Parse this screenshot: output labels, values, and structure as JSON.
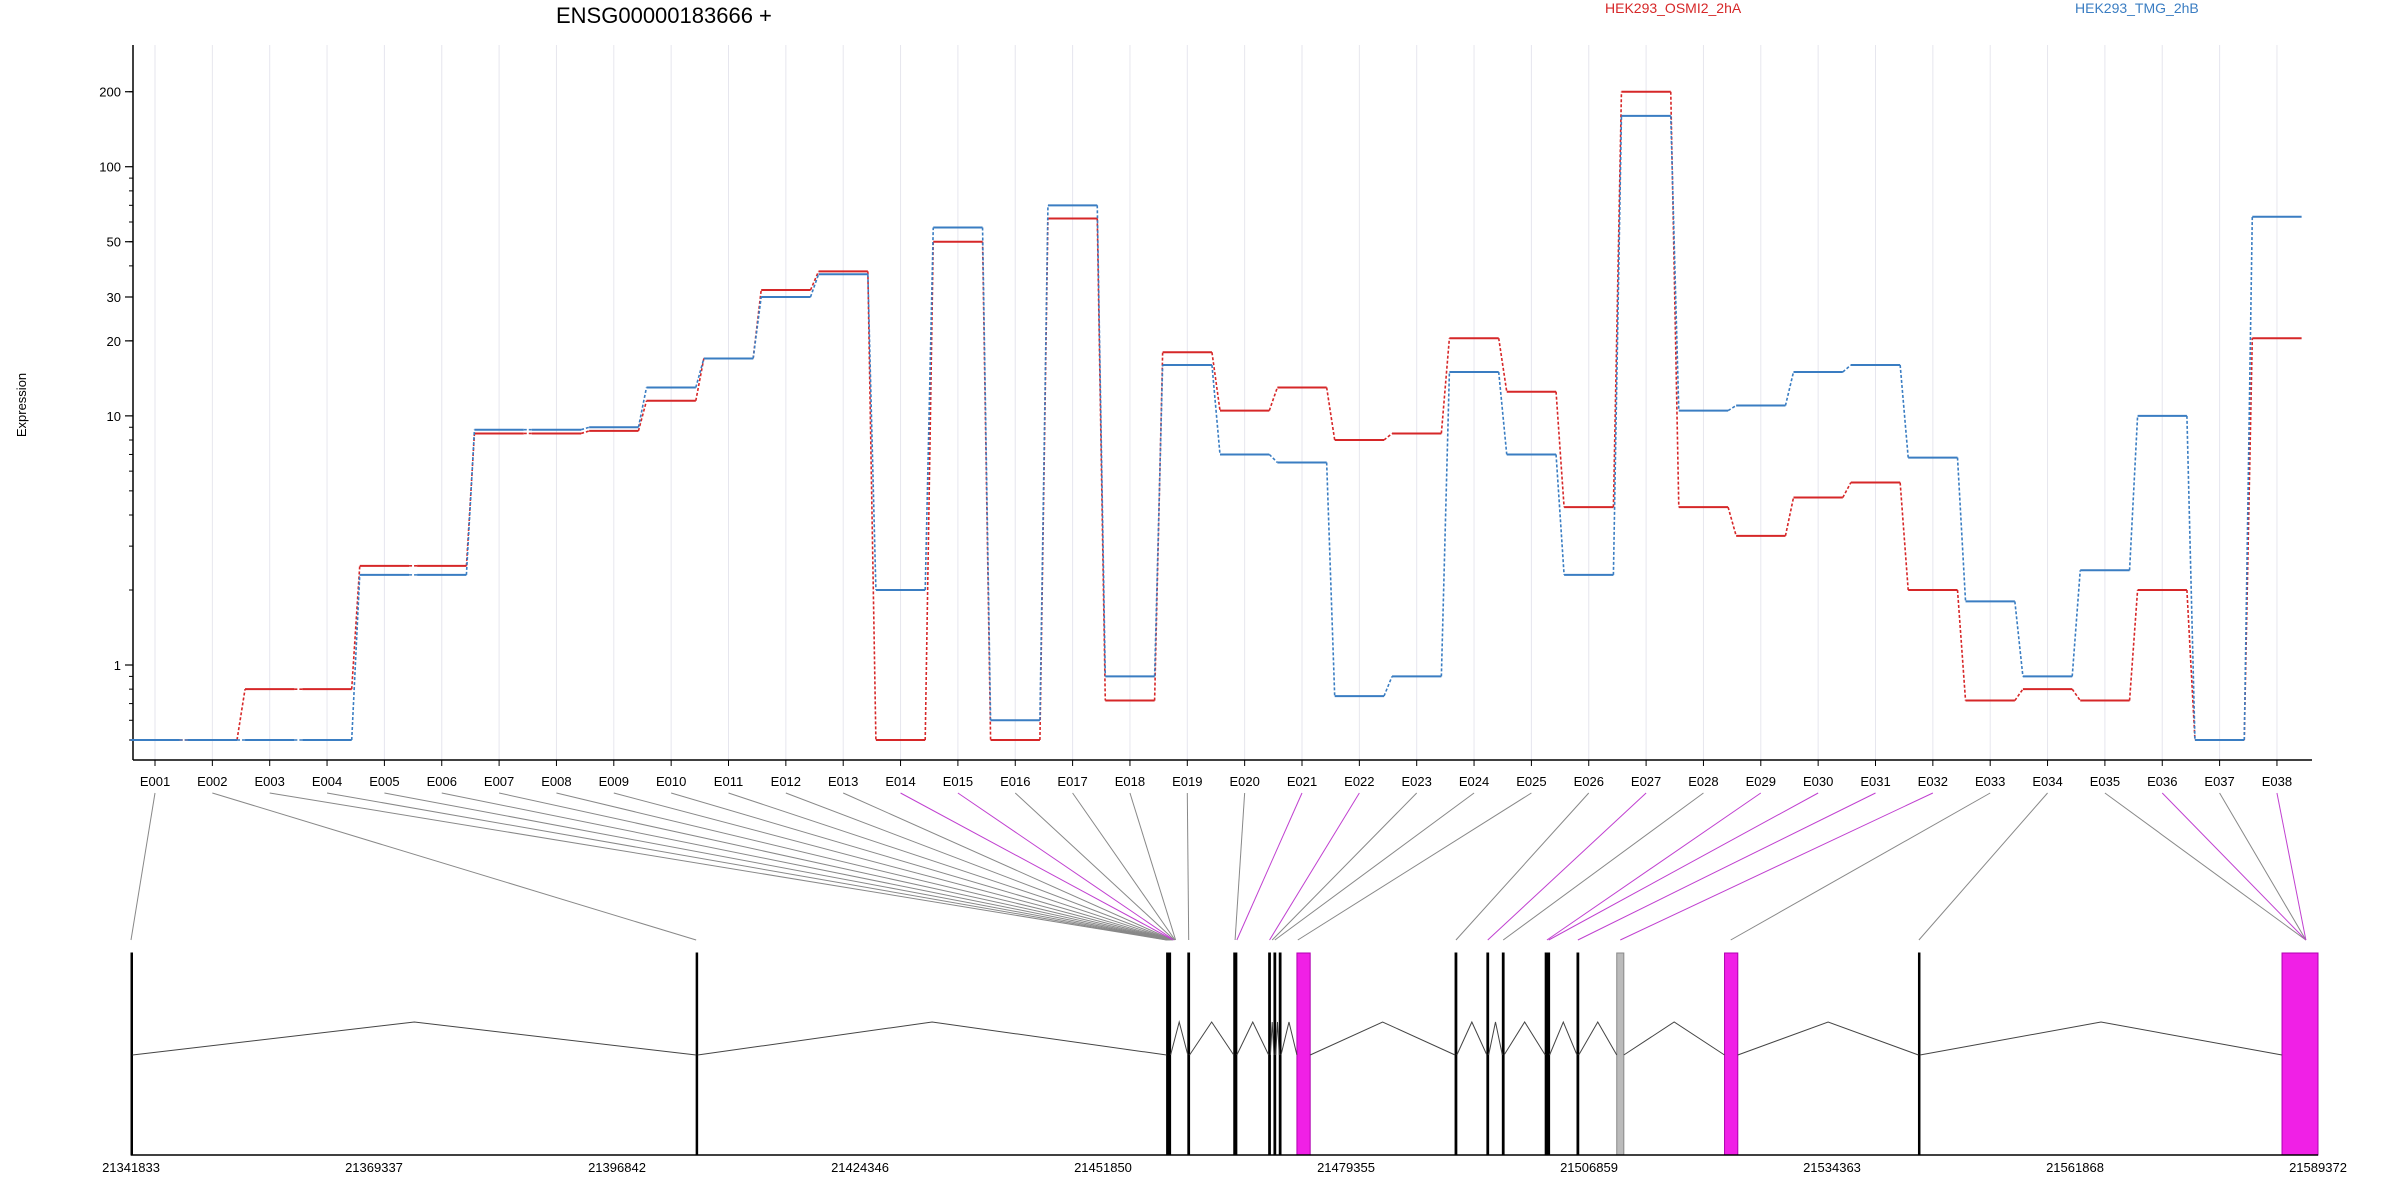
{
  "chart_data": {
    "type": "line",
    "title": "ENSG00000183666 +",
    "xlabel": "",
    "ylabel": "Expression",
    "y_scale": "log",
    "ylim": [
      0.5,
      240
    ],
    "yticks": [
      1,
      10,
      20,
      30,
      50,
      100,
      200
    ],
    "grid": "vertical",
    "legend_placement": "top-right",
    "colors": {
      "HEK293_OSMI2_2hA": "#d62728",
      "HEK293_TMG_2hB": "#3a7dc2",
      "intron": "#444444",
      "exon": "#000000",
      "exon_highlight": "#f020e6",
      "exon_gray": "#bbbbbb",
      "connector": "#888888",
      "connector_highlight": "#c040d0"
    },
    "categories": [
      "E001",
      "E002",
      "E003",
      "E004",
      "E005",
      "E006",
      "E007",
      "E008",
      "E009",
      "E010",
      "E011",
      "E012",
      "E013",
      "E014",
      "E015",
      "E016",
      "E017",
      "E018",
      "E019",
      "E020",
      "E021",
      "E022",
      "E023",
      "E024",
      "E025",
      "E026",
      "E027",
      "E028",
      "E029",
      "E030",
      "E031",
      "E032",
      "E033",
      "E034",
      "E035",
      "E036",
      "E037",
      "E038"
    ],
    "series": [
      {
        "name": "HEK293_OSMI2_2hA",
        "values": [
          0.5,
          0.5,
          0.8,
          0.8,
          2.5,
          2.5,
          8.5,
          8.5,
          8.7,
          11.5,
          17,
          32,
          38,
          0.5,
          50,
          0.5,
          62,
          0.72,
          18,
          10.5,
          13,
          8,
          8.5,
          20.5,
          12.5,
          4.3,
          200,
          4.3,
          3.3,
          4.7,
          5.4,
          2.0,
          0.72,
          0.8,
          0.72,
          2.0,
          0.5,
          20.5
        ]
      },
      {
        "name": "HEK293_TMG_2hB",
        "values": [
          0.5,
          0.5,
          0.5,
          0.5,
          2.3,
          2.3,
          8.8,
          8.8,
          9.0,
          13,
          17,
          30,
          37,
          2,
          57,
          0.6,
          70,
          0.9,
          16,
          7,
          6.5,
          0.75,
          0.9,
          15,
          7.0,
          2.3,
          160,
          10.5,
          11,
          15,
          16,
          6.8,
          1.8,
          0.9,
          2.4,
          10,
          0.5,
          63
        ]
      }
    ],
    "connector_highlight_exons": [
      "E014",
      "E015",
      "E021",
      "E022",
      "E027",
      "E029",
      "E030",
      "E031",
      "E032",
      "E036",
      "E038"
    ],
    "gene_model": {
      "coordinates": [
        "21341833",
        "21369337",
        "21396842",
        "21424346",
        "21451850",
        "21479355",
        "21506859",
        "21534363",
        "21561868",
        "21589372"
      ],
      "exons": [
        {
          "start": 21341833,
          "end": 21341833,
          "type": "line"
        },
        {
          "start": 21405800,
          "end": 21405800,
          "type": "line"
        },
        {
          "start": 21459050,
          "end": 21459400,
          "type": "solid"
        },
        {
          "start": 21461450,
          "end": 21461650,
          "type": "line"
        },
        {
          "start": 21466650,
          "end": 21467000,
          "type": "line"
        },
        {
          "start": 21470600,
          "end": 21470800,
          "type": "line"
        },
        {
          "start": 21471200,
          "end": 21471400,
          "type": "line"
        },
        {
          "start": 21471800,
          "end": 21472000,
          "type": "line"
        },
        {
          "start": 21473800,
          "end": 21475300,
          "type": "highlight"
        },
        {
          "start": 21491700,
          "end": 21491900,
          "type": "line"
        },
        {
          "start": 21495300,
          "end": 21495500,
          "type": "line"
        },
        {
          "start": 21497050,
          "end": 21497250,
          "type": "line"
        },
        {
          "start": 21501900,
          "end": 21502400,
          "type": "line"
        },
        {
          "start": 21505500,
          "end": 21505700,
          "type": "line"
        },
        {
          "start": 21510000,
          "end": 21510800,
          "type": "gray"
        },
        {
          "start": 21522200,
          "end": 21523700,
          "type": "highlight"
        },
        {
          "start": 21544150,
          "end": 21544300,
          "type": "line"
        },
        {
          "start": 21585300,
          "end": 21589372,
          "type": "highlight"
        }
      ]
    }
  }
}
